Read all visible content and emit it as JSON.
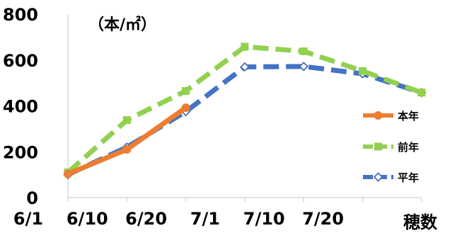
{
  "chart_data": {
    "type": "line",
    "unit_label": "（本/㎡）",
    "xlabel": "穂数",
    "ylabel": "",
    "categories": [
      "6/1",
      "6/10",
      "6/20",
      "7/1",
      "7/10",
      "7/20",
      ""
    ],
    "ylim": [
      0,
      800
    ],
    "yticks": [
      0,
      200,
      400,
      600,
      800
    ],
    "grid": false,
    "legend_position": "right",
    "series": [
      {
        "name": "平年",
        "color": "#4472c4",
        "marker": "diamond",
        "dash": "dashed",
        "values": [
          100,
          220,
          375,
          570,
          572,
          540,
          458
        ]
      },
      {
        "name": "前年",
        "color": "#92d050",
        "marker": "square",
        "dash": "dashed",
        "values": [
          110,
          338,
          465,
          658,
          638,
          552,
          458
        ]
      },
      {
        "name": "本年",
        "color": "#ed7d31",
        "marker": "circle",
        "dash": "solid",
        "values": [
          103,
          210,
          392,
          null,
          null,
          null,
          null
        ]
      }
    ],
    "legend_order": [
      "本年",
      "前年",
      "平年"
    ]
  }
}
